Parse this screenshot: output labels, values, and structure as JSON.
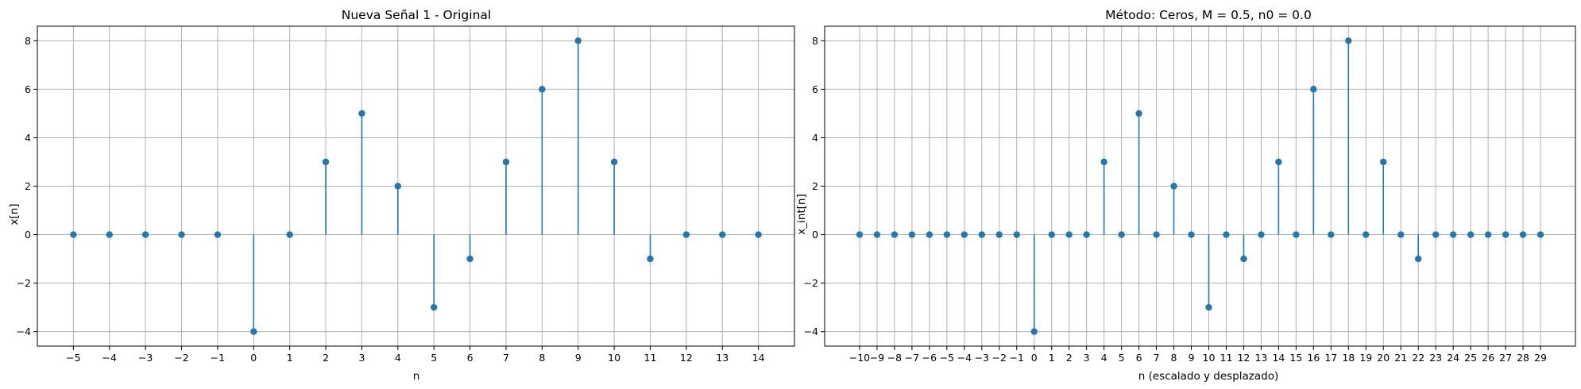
{
  "colors": {
    "stem": "#1f77b4",
    "marker": "#1f77b4",
    "grid": "#b0b0b0"
  },
  "chart_data": [
    {
      "type": "stem",
      "title": "Nueva Señal 1 - Original",
      "xlabel": "n",
      "ylabel": "x[n]",
      "x": [
        -5,
        -4,
        -3,
        -2,
        -1,
        0,
        1,
        2,
        3,
        4,
        5,
        6,
        7,
        8,
        9,
        10,
        11,
        12,
        13,
        14
      ],
      "y": [
        0,
        0,
        0,
        0,
        0,
        -4,
        0,
        3,
        5,
        2,
        -3,
        -1,
        3,
        6,
        8,
        3,
        -1,
        0,
        0,
        0
      ],
      "xlim": [
        -6,
        15
      ],
      "ylim": [
        -4.6,
        8.6
      ],
      "xticks": [
        -5,
        -4,
        -3,
        -2,
        -1,
        0,
        1,
        2,
        3,
        4,
        5,
        6,
        7,
        8,
        9,
        10,
        11,
        12,
        13,
        14
      ],
      "xtick_labels": [
        "−5",
        "−4",
        "−3",
        "−2",
        "−1",
        "0",
        "1",
        "2",
        "3",
        "4",
        "5",
        "6",
        "7",
        "8",
        "9",
        "10",
        "11",
        "12",
        "13",
        "14"
      ],
      "yticks": [
        -4,
        -2,
        0,
        2,
        4,
        6,
        8
      ],
      "ytick_labels": [
        "−4",
        "−2",
        "0",
        "2",
        "4",
        "6",
        "8"
      ],
      "grid": true
    },
    {
      "type": "stem",
      "title": "Método: Ceros, M = 0.5, n0 = 0.0",
      "xlabel": "n (escalado y desplazado)",
      "ylabel": "x_int[n]",
      "x": [
        -10,
        -9,
        -8,
        -7,
        -6,
        -5,
        -4,
        -3,
        -2,
        -1,
        0,
        1,
        2,
        3,
        4,
        5,
        6,
        7,
        8,
        9,
        10,
        11,
        12,
        13,
        14,
        15,
        16,
        17,
        18,
        19,
        20,
        21,
        22,
        23,
        24,
        25,
        26,
        27,
        28,
        29
      ],
      "y": [
        0,
        0,
        0,
        0,
        0,
        0,
        0,
        0,
        0,
        0,
        -4,
        0,
        0,
        0,
        3,
        0,
        5,
        0,
        2,
        0,
        -3,
        0,
        -1,
        0,
        3,
        0,
        6,
        0,
        8,
        0,
        3,
        0,
        -1,
        0,
        0,
        0,
        0,
        0,
        0,
        0
      ],
      "xlim": [
        -12,
        31
      ],
      "ylim": [
        -4.6,
        8.6
      ],
      "xticks": [
        -10,
        -9,
        -8,
        -7,
        -6,
        -5,
        -4,
        -3,
        -2,
        -1,
        0,
        1,
        2,
        3,
        4,
        5,
        6,
        7,
        8,
        9,
        10,
        11,
        12,
        13,
        14,
        15,
        16,
        17,
        18,
        19,
        20,
        21,
        22,
        23,
        24,
        25,
        26,
        27,
        28,
        29
      ],
      "xtick_labels": [
        "−10",
        "−9",
        "−8",
        "−7",
        "−6",
        "−5",
        "−4",
        "−3",
        "−2",
        "−1",
        "0",
        "1",
        "2",
        "3",
        "4",
        "5",
        "6",
        "7",
        "8",
        "9",
        "10",
        "11",
        "12",
        "13",
        "14",
        "15",
        "16",
        "17",
        "18",
        "19",
        "20",
        "21",
        "22",
        "23",
        "24",
        "25",
        "26",
        "27",
        "28",
        "29"
      ],
      "yticks": [
        -4,
        -2,
        0,
        2,
        4,
        6,
        8
      ],
      "ytick_labels": [
        "−4",
        "−2",
        "0",
        "2",
        "4",
        "6",
        "8"
      ],
      "grid": true
    }
  ]
}
